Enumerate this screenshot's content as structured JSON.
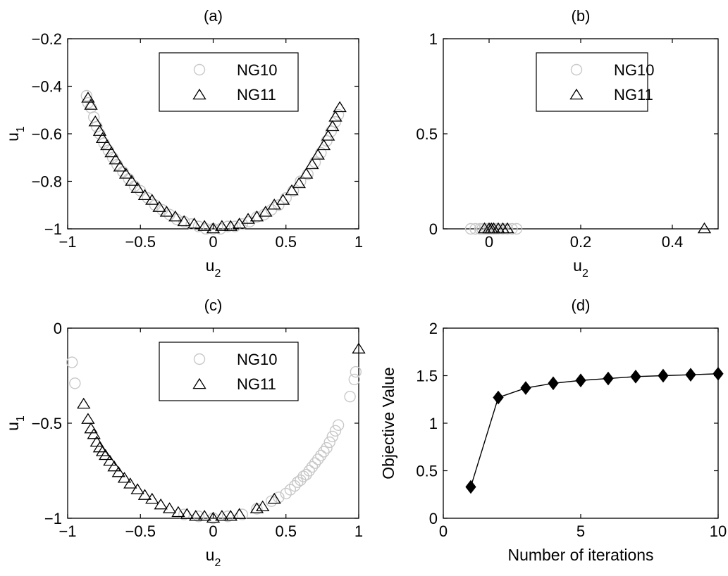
{
  "chart_data": [
    {
      "panel": "a",
      "type": "scatter",
      "title": "(a)",
      "xlabel": "u",
      "xlabel_sub": "2",
      "ylabel": "u",
      "ylabel_sub": "1",
      "xlim": [
        -1,
        1
      ],
      "ylim": [
        -1,
        -0.2
      ],
      "xticks": [
        -1,
        -0.5,
        0,
        0.5,
        1
      ],
      "xtick_labels": [
        "−1",
        "−0.5",
        "0",
        "0.5",
        "1"
      ],
      "yticks": [
        -1,
        -0.8,
        -0.6,
        -0.4,
        -0.2
      ],
      "ytick_labels": [
        "−1",
        "−0.8",
        "−0.6",
        "−0.4",
        "−0.2"
      ],
      "grid": false,
      "legend_position": "top-center",
      "series": [
        {
          "name": "NG10",
          "marker": "circle",
          "color": "#c8c8c8",
          "points": [
            [
              -0.87,
              -0.44
            ],
            [
              -0.86,
              -0.47
            ],
            [
              -0.84,
              -0.49
            ],
            [
              -0.82,
              -0.53
            ],
            [
              -0.8,
              -0.57
            ],
            [
              -0.78,
              -0.6
            ],
            [
              -0.75,
              -0.64
            ],
            [
              -0.72,
              -0.67
            ],
            [
              -0.69,
              -0.7
            ],
            [
              -0.66,
              -0.73
            ],
            [
              -0.62,
              -0.76
            ],
            [
              -0.58,
              -0.79
            ],
            [
              -0.54,
              -0.82
            ],
            [
              -0.5,
              -0.84
            ],
            [
              -0.45,
              -0.87
            ],
            [
              -0.4,
              -0.9
            ],
            [
              -0.35,
              -0.92
            ],
            [
              -0.3,
              -0.94
            ],
            [
              -0.25,
              -0.96
            ],
            [
              -0.2,
              -0.97
            ],
            [
              -0.15,
              -0.98
            ],
            [
              -0.1,
              -0.99
            ],
            [
              -0.05,
              -1.0
            ],
            [
              0.0,
              -1.0
            ],
            [
              0.05,
              -1.0
            ],
            [
              0.1,
              -0.99
            ],
            [
              0.15,
              -0.99
            ],
            [
              0.2,
              -0.98
            ],
            [
              0.25,
              -0.97
            ],
            [
              0.3,
              -0.95
            ],
            [
              0.35,
              -0.94
            ],
            [
              0.4,
              -0.92
            ],
            [
              0.45,
              -0.9
            ],
            [
              0.5,
              -0.87
            ],
            [
              0.55,
              -0.84
            ],
            [
              0.6,
              -0.8
            ],
            [
              0.65,
              -0.77
            ],
            [
              0.7,
              -0.72
            ],
            [
              0.74,
              -0.68
            ],
            [
              0.78,
              -0.63
            ],
            [
              0.81,
              -0.59
            ],
            [
              0.84,
              -0.55
            ],
            [
              0.86,
              -0.52
            ]
          ]
        },
        {
          "name": "NG11",
          "marker": "triangle",
          "color": "#000000",
          "points": [
            [
              -0.86,
              -0.45
            ],
            [
              -0.84,
              -0.48
            ],
            [
              -0.81,
              -0.55
            ],
            [
              -0.78,
              -0.59
            ],
            [
              -0.76,
              -0.62
            ],
            [
              -0.73,
              -0.65
            ],
            [
              -0.7,
              -0.68
            ],
            [
              -0.67,
              -0.71
            ],
            [
              -0.64,
              -0.74
            ],
            [
              -0.6,
              -0.77
            ],
            [
              -0.56,
              -0.8
            ],
            [
              -0.52,
              -0.83
            ],
            [
              -0.47,
              -0.86
            ],
            [
              -0.42,
              -0.88
            ],
            [
              -0.37,
              -0.91
            ],
            [
              -0.32,
              -0.93
            ],
            [
              -0.26,
              -0.95
            ],
            [
              -0.2,
              -0.97
            ],
            [
              -0.13,
              -0.98
            ],
            [
              -0.06,
              -0.99
            ],
            [
              0.0,
              -1.0
            ],
            [
              0.06,
              -0.99
            ],
            [
              0.12,
              -0.99
            ],
            [
              0.18,
              -0.98
            ],
            [
              0.24,
              -0.96
            ],
            [
              0.3,
              -0.95
            ],
            [
              0.36,
              -0.93
            ],
            [
              0.42,
              -0.9
            ],
            [
              0.48,
              -0.88
            ],
            [
              0.54,
              -0.84
            ],
            [
              0.59,
              -0.81
            ],
            [
              0.64,
              -0.77
            ],
            [
              0.68,
              -0.73
            ],
            [
              0.72,
              -0.69
            ],
            [
              0.76,
              -0.65
            ],
            [
              0.79,
              -0.61
            ],
            [
              0.82,
              -0.57
            ],
            [
              0.84,
              -0.53
            ],
            [
              0.87,
              -0.49
            ]
          ]
        }
      ]
    },
    {
      "panel": "b",
      "type": "scatter",
      "title": "(b)",
      "xlabel": "u",
      "xlabel_sub": "2",
      "ylabel": "",
      "ylabel_sub": "",
      "xlim": [
        -0.1,
        0.5
      ],
      "ylim": [
        0,
        1
      ],
      "xticks": [
        0,
        0.2,
        0.4
      ],
      "xtick_labels": [
        "0",
        "0.2",
        "0.4"
      ],
      "yticks": [
        0,
        0.5,
        1
      ],
      "ytick_labels": [
        "0",
        "0.5",
        "1"
      ],
      "grid": false,
      "legend_position": "top-center",
      "series": [
        {
          "name": "NG10",
          "marker": "circle",
          "color": "#c8c8c8",
          "points": [
            [
              -0.04,
              0
            ],
            [
              -0.03,
              0
            ],
            [
              -0.02,
              0
            ],
            [
              -0.015,
              0
            ],
            [
              -0.01,
              0
            ],
            [
              -0.005,
              0
            ],
            [
              0.0,
              0
            ],
            [
              0.005,
              0
            ],
            [
              0.01,
              0
            ],
            [
              0.015,
              0
            ],
            [
              0.02,
              0
            ],
            [
              0.03,
              0
            ],
            [
              0.04,
              0
            ],
            [
              0.05,
              0
            ],
            [
              0.06,
              0
            ]
          ]
        },
        {
          "name": "NG11",
          "marker": "triangle",
          "color": "#000000",
          "points": [
            [
              -0.01,
              0
            ],
            [
              0.0,
              0
            ],
            [
              0.005,
              0
            ],
            [
              0.01,
              0
            ],
            [
              0.02,
              0
            ],
            [
              0.03,
              0
            ],
            [
              0.04,
              0
            ],
            [
              0.47,
              0
            ]
          ]
        }
      ]
    },
    {
      "panel": "c",
      "type": "scatter",
      "title": "(c)",
      "xlabel": "u",
      "xlabel_sub": "2",
      "ylabel": "u",
      "ylabel_sub": "1",
      "xlim": [
        -1,
        1
      ],
      "ylim": [
        -1,
        0
      ],
      "xticks": [
        -1,
        -0.5,
        0,
        0.5,
        1
      ],
      "xtick_labels": [
        "−1",
        "−0.5",
        "0",
        "0.5",
        "1"
      ],
      "yticks": [
        -1,
        -0.5,
        0
      ],
      "ytick_labels": [
        "−1",
        "−0.5",
        "0"
      ],
      "grid": false,
      "legend_position": "top-center",
      "series": [
        {
          "name": "NG10",
          "marker": "circle",
          "color": "#c8c8c8",
          "points": [
            [
              -0.97,
              -0.18
            ],
            [
              -0.95,
              -0.29
            ],
            [
              -0.2,
              -0.98
            ],
            [
              -0.1,
              -0.99
            ],
            [
              0.0,
              -1.0
            ],
            [
              0.1,
              -0.99
            ],
            [
              0.2,
              -0.98
            ],
            [
              0.3,
              -0.95
            ],
            [
              0.4,
              -0.91
            ],
            [
              0.45,
              -0.89
            ],
            [
              0.5,
              -0.87
            ],
            [
              0.53,
              -0.85
            ],
            [
              0.56,
              -0.83
            ],
            [
              0.58,
              -0.81
            ],
            [
              0.6,
              -0.8
            ],
            [
              0.62,
              -0.78
            ],
            [
              0.64,
              -0.77
            ],
            [
              0.66,
              -0.75
            ],
            [
              0.68,
              -0.73
            ],
            [
              0.7,
              -0.71
            ],
            [
              0.72,
              -0.69
            ],
            [
              0.74,
              -0.67
            ],
            [
              0.76,
              -0.65
            ],
            [
              0.78,
              -0.63
            ],
            [
              0.8,
              -0.6
            ],
            [
              0.82,
              -0.57
            ],
            [
              0.84,
              -0.54
            ],
            [
              0.86,
              -0.51
            ],
            [
              0.94,
              -0.36
            ],
            [
              0.97,
              -0.27
            ],
            [
              0.98,
              -0.23
            ]
          ]
        },
        {
          "name": "NG11",
          "marker": "triangle",
          "color": "#000000",
          "points": [
            [
              -0.89,
              -0.4
            ],
            [
              -0.86,
              -0.48
            ],
            [
              -0.84,
              -0.53
            ],
            [
              -0.82,
              -0.56
            ],
            [
              -0.8,
              -0.6
            ],
            [
              -0.78,
              -0.63
            ],
            [
              -0.76,
              -0.65
            ],
            [
              -0.74,
              -0.67
            ],
            [
              -0.71,
              -0.7
            ],
            [
              -0.68,
              -0.73
            ],
            [
              -0.65,
              -0.76
            ],
            [
              -0.61,
              -0.79
            ],
            [
              -0.57,
              -0.82
            ],
            [
              -0.52,
              -0.85
            ],
            [
              -0.47,
              -0.88
            ],
            [
              -0.42,
              -0.9
            ],
            [
              -0.36,
              -0.93
            ],
            [
              -0.3,
              -0.95
            ],
            [
              -0.24,
              -0.97
            ],
            [
              -0.18,
              -0.98
            ],
            [
              -0.12,
              -0.99
            ],
            [
              -0.06,
              -0.99
            ],
            [
              0.0,
              -1.0
            ],
            [
              0.06,
              -0.99
            ],
            [
              0.12,
              -0.99
            ],
            [
              0.18,
              -0.98
            ],
            [
              0.3,
              -0.95
            ],
            [
              0.34,
              -0.94
            ],
            [
              0.42,
              -0.9
            ],
            [
              1.0,
              -0.11
            ]
          ]
        }
      ]
    },
    {
      "panel": "d",
      "type": "line",
      "title": "(d)",
      "xlabel": "Number of iterations",
      "xlabel_sub": "",
      "ylabel": "Objective Value",
      "ylabel_sub": "",
      "xlim": [
        0,
        10
      ],
      "ylim": [
        0,
        2
      ],
      "xticks": [
        0,
        5,
        10
      ],
      "xtick_labels": [
        "0",
        "5",
        "10"
      ],
      "yticks": [
        0,
        0.5,
        1,
        1.5,
        2
      ],
      "ytick_labels": [
        "0",
        "0.5",
        "1",
        "1.5",
        "2"
      ],
      "grid": false,
      "legend_position": "none",
      "series": [
        {
          "name": "",
          "marker": "diamond",
          "color": "#000000",
          "points": [
            [
              1,
              0.33
            ],
            [
              2,
              1.27
            ],
            [
              3,
              1.37
            ],
            [
              4,
              1.42
            ],
            [
              5,
              1.45
            ],
            [
              6,
              1.47
            ],
            [
              7,
              1.49
            ],
            [
              8,
              1.5
            ],
            [
              9,
              1.51
            ],
            [
              10,
              1.52
            ]
          ]
        }
      ]
    }
  ]
}
